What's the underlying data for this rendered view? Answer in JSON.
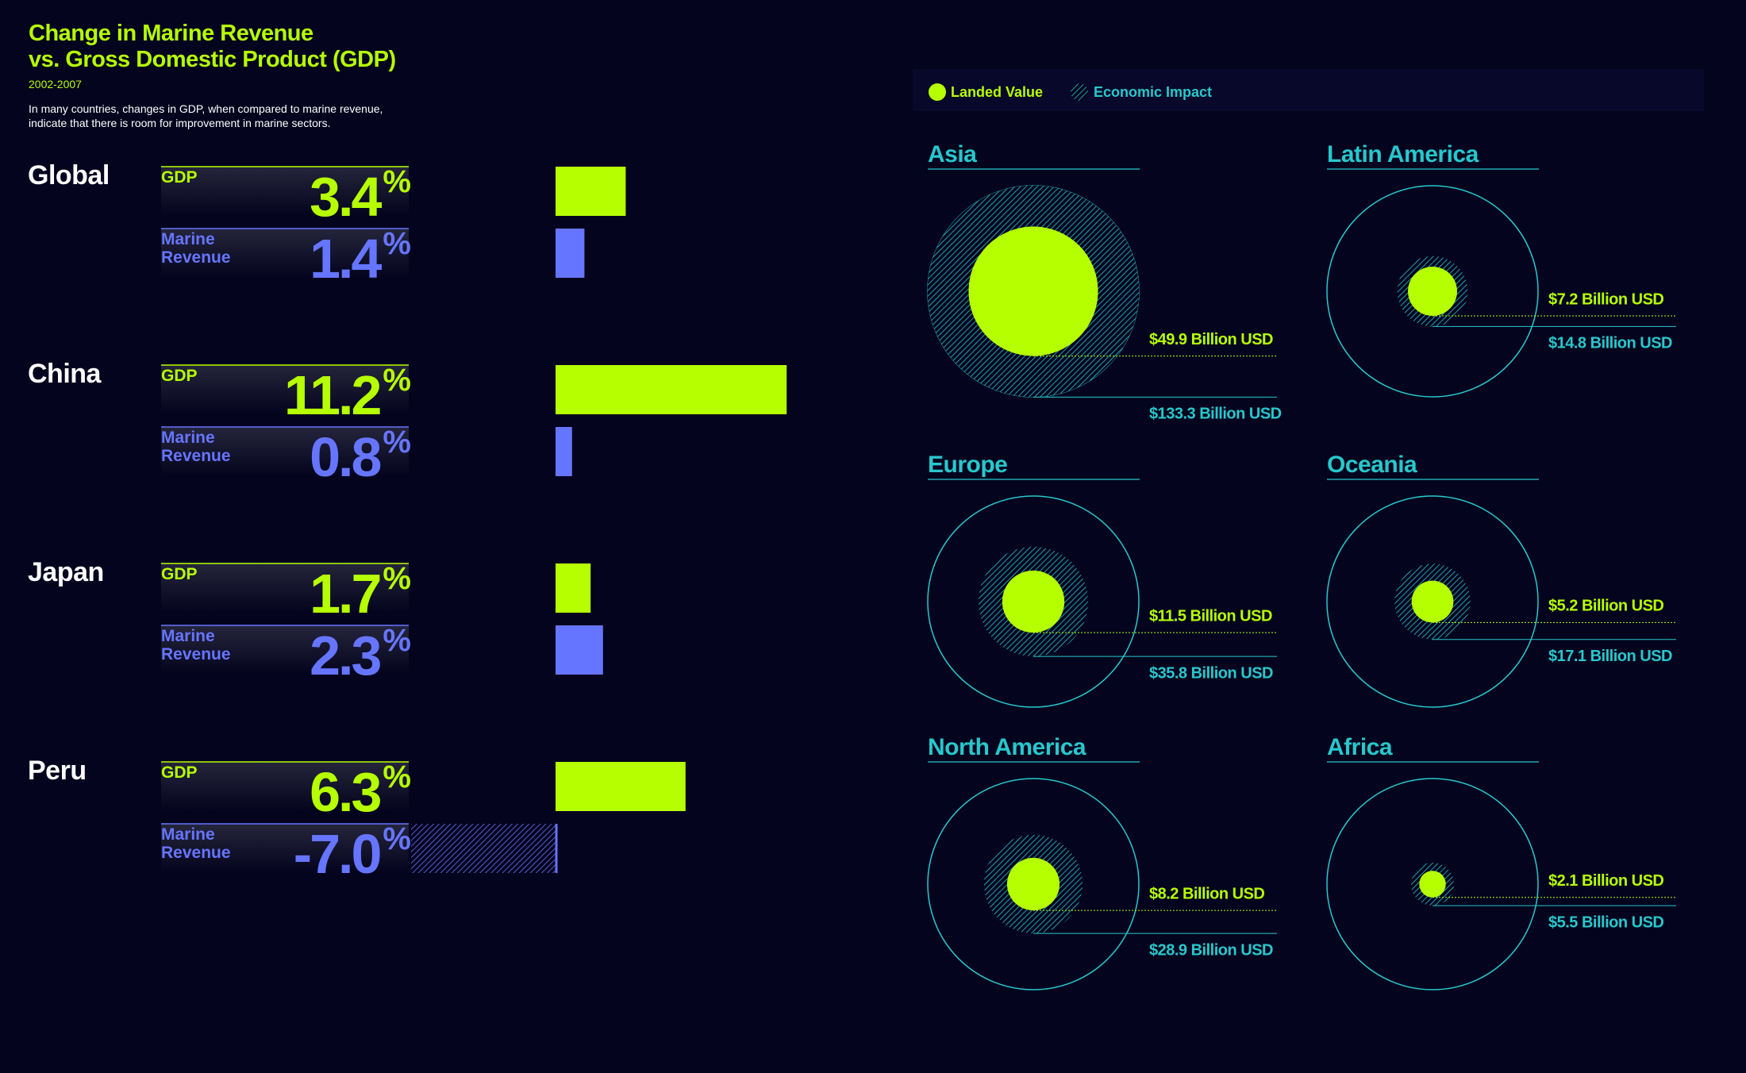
{
  "chart_data": [
    {
      "type": "bar",
      "title": "Change in Marine Revenue\nvs. Gross Domestic Product (GDP)",
      "subtitle": "2002-2007",
      "description": "In many countries, changes in GDP, when compared to marine revenue,\nindicate that there is room for improvement in marine sectors.",
      "categories": [
        "Global",
        "China",
        "Japan",
        "Peru"
      ],
      "series": [
        {
          "name": "GDP",
          "color": "#b6ff00",
          "values": [
            3.4,
            11.2,
            1.7,
            6.3
          ],
          "value_labels": [
            "3.4%",
            "11.2%",
            "1.7%",
            "6.3%"
          ]
        },
        {
          "name": "Marine Revenue",
          "color": "#6675ff",
          "values": [
            1.4,
            0.8,
            2.3,
            -7.0
          ],
          "value_labels": [
            "1.4%",
            "0.8%",
            "2.3%",
            "-7.0%"
          ]
        }
      ]
    },
    {
      "type": "bubble",
      "categories": [
        "Asia",
        "Latin America",
        "Europe",
        "Oceania",
        "North America",
        "Africa"
      ],
      "series": [
        {
          "name": "Landed Value",
          "color": "#b6ff00",
          "values": [
            49.9,
            7.2,
            11.5,
            5.2,
            8.2,
            2.1
          ],
          "value_labels": [
            "$49.9 Billion USD",
            "$7.2 Billion USD",
            "$11.5 Billion USD",
            "$5.2 Billion USD",
            "$8.2 Billion USD",
            "$2.1 Billion USD"
          ]
        },
        {
          "name": "Economic Impact",
          "color": "#27c8cc",
          "values": [
            133.3,
            14.8,
            35.8,
            17.1,
            28.9,
            5.5
          ],
          "value_labels": [
            "$133.3 Billion USD",
            "$14.8 Billion USD",
            "$35.8 Billion USD",
            "$17.1 Billion USD",
            "$28.9 Billion USD",
            "$5.5 Billion USD"
          ]
        }
      ]
    }
  ]
}
